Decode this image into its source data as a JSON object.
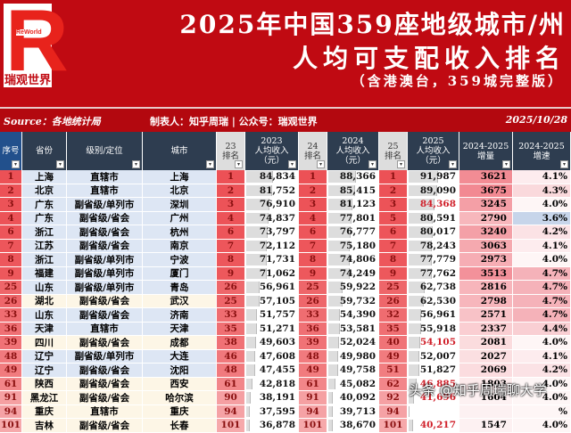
{
  "banner": {
    "logo_text": "ReWorld",
    "logo_cn": "瑞观世界",
    "title_line1": "2025年中国359座地级城市/州",
    "title_line2": "人均可支配收入排名",
    "title_line3": "（含港澳台，359城完整版）"
  },
  "source": {
    "source": "Source：各地统计局",
    "author": "制表人：知乎周瑞 | 公众号：瑞观世界",
    "date": "2025/10/28"
  },
  "columns": [
    "序号",
    "省份",
    "级别/定位",
    "城市",
    "23排名",
    "2023人均收入（元）",
    "24排名",
    "2024人均收入（元）",
    "25排名",
    "2025人均收入（元）",
    "2024-2025增量",
    "2024-2025增速"
  ],
  "header": {
    "seq": "序号",
    "prov": "省份",
    "level": "级别/定位",
    "city": "城市",
    "r23a": "23",
    "r23b": "排名",
    "v23a": "2023",
    "v23b": "人均收入",
    "v23c": "（元）",
    "r24a": "24",
    "r24b": "排名",
    "v24a": "2024",
    "v24b": "人均收入",
    "v24c": "（元）",
    "r25a": "25",
    "r25b": "排名",
    "v25a": "2025",
    "v25b": "人均收入",
    "v25c": "（元）",
    "inca": "2024-2025",
    "incb": "增量",
    "gra": "2024-2025",
    "grb": "增速"
  },
  "rows": [
    [
      "1",
      "上海",
      "直辖市",
      "上海",
      "1",
      "84,834",
      "1",
      "88,366",
      "1",
      "91,987",
      "3621",
      "4.1%"
    ],
    [
      "2",
      "北京",
      "直辖市",
      "北京",
      "2",
      "81,752",
      "2",
      "85,415",
      "2",
      "89,090",
      "3675",
      "4.3%"
    ],
    [
      "3",
      "广东",
      "副省级/单列市",
      "深圳",
      "3",
      "76,910",
      "3",
      "81,123",
      "3",
      "84,368",
      "3245",
      "4.0%"
    ],
    [
      "4",
      "广东",
      "副省级/省会",
      "广州",
      "4",
      "74,837",
      "4",
      "77,801",
      "5",
      "80,591",
      "2790",
      "3.6%"
    ],
    [
      "6",
      "浙江",
      "副省级/省会",
      "杭州",
      "6",
      "73,797",
      "6",
      "76,777",
      "6",
      "80,017",
      "3240",
      "4.2%"
    ],
    [
      "7",
      "江苏",
      "副省级/省会",
      "南京",
      "7",
      "72,112",
      "7",
      "75,180",
      "7",
      "78,243",
      "3063",
      "4.1%"
    ],
    [
      "8",
      "浙江",
      "副省级/单列市",
      "宁波",
      "8",
      "71,731",
      "8",
      "74,806",
      "8",
      "77,779",
      "2973",
      "4.0%"
    ],
    [
      "9",
      "福建",
      "副省级/单列市",
      "厦门",
      "9",
      "71,062",
      "9",
      "74,249",
      "9",
      "77,762",
      "3513",
      "4.7%"
    ],
    [
      "25",
      "山东",
      "副省级/单列市",
      "青岛",
      "26",
      "56,961",
      "25",
      "59,922",
      "25",
      "62,738",
      "2816",
      "4.7%"
    ],
    [
      "26",
      "湖北",
      "副省级/省会",
      "武汉",
      "25",
      "57,105",
      "26",
      "59,732",
      "26",
      "62,530",
      "2798",
      "4.7%"
    ],
    [
      "33",
      "山东",
      "副省级/省会",
      "济南",
      "33",
      "51,757",
      "33",
      "54,390",
      "32",
      "56,961",
      "2571",
      "4.7%"
    ],
    [
      "36",
      "天津",
      "直辖市",
      "天津",
      "35",
      "51,271",
      "36",
      "53,581",
      "35",
      "55,918",
      "2337",
      "4.4%"
    ],
    [
      "39",
      "四川",
      "副省级/省会",
      "成都",
      "38",
      "49,603",
      "39",
      "52,024",
      "40",
      "54,105",
      "2081",
      "4.0%"
    ],
    [
      "48",
      "辽宁",
      "副省级/单列市",
      "大连",
      "46",
      "47,608",
      "48",
      "49,980",
      "49",
      "52,007",
      "2027",
      "4.1%"
    ],
    [
      "49",
      "辽宁",
      "副省级/省会",
      "沈阳",
      "48",
      "47,455",
      "49",
      "49,758",
      "51",
      "51,827",
      "2069",
      "4.2%"
    ],
    [
      "61",
      "陕西",
      "副省级/省会",
      "西安",
      "61",
      "42,818",
      "61",
      "45,082",
      "62",
      "46,885",
      "1803",
      "4.0%"
    ],
    [
      "91",
      "黑龙江",
      "副省级/省会",
      "哈尔滨",
      "90",
      "38,191",
      "91",
      "40,092",
      "92",
      "41,696",
      "1604",
      "4.0%"
    ],
    [
      "94",
      "重庆",
      "直辖市",
      "重庆",
      "94",
      "37,595",
      "94",
      "39,713",
      "94",
      "",
      "",
      "%"
    ],
    [
      "101",
      "吉林",
      "副省级/省会",
      "长春",
      "101",
      "36,878",
      "101",
      "38,670",
      "101",
      "40,217",
      "1547",
      "4.0%"
    ]
  ],
  "red_2025_rows": [
    2,
    12,
    15,
    16,
    18
  ],
  "cream_rows": [
    9,
    12,
    15,
    16,
    17,
    18
  ],
  "watermark": "头条 @知乎周瑞聊大学",
  "colors": {
    "banner": "#c00a12",
    "header": "#2e3d50",
    "rank_heat": "#f07070",
    "row_blue": "#dde6f4",
    "row_cream": "#fdf6e6",
    "highlight_text": "#d0202a"
  }
}
